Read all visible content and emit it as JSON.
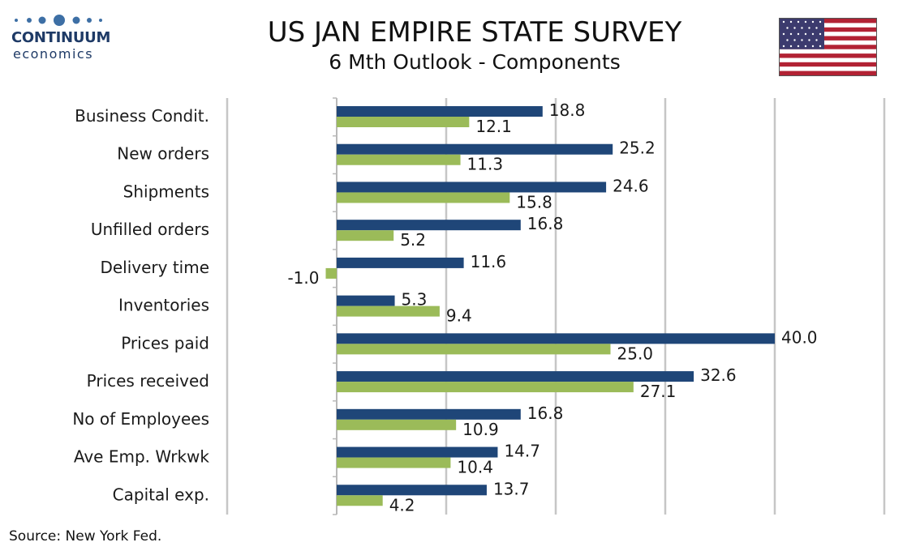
{
  "logo": {
    "name": "CONTINUUM",
    "sub": "economics"
  },
  "header": {
    "title": "US JAN EMPIRE STATE SURVEY",
    "subtitle": "6 Mth Outlook - Components"
  },
  "flag_icon": "us-flag-icon",
  "colors": {
    "series_1": "#1f4678",
    "series_2": "#9bbb59",
    "grid": "#c6c6c6",
    "logo": "#1e3a66"
  },
  "chart_data": {
    "type": "bar",
    "orientation": "horizontal",
    "categories": [
      "Business Condit.",
      "New orders ",
      "Shipments ",
      "Unfilled orders",
      "Delivery time",
      "Inventories",
      "Prices paid",
      "Prices received",
      "No of Employees",
      "Ave Emp. Wrkwk",
      "Capital exp."
    ],
    "series": [
      {
        "values": [
          18.8,
          25.2,
          24.6,
          16.8,
          11.6,
          5.3,
          40.0,
          32.6,
          16.8,
          14.7,
          13.7
        ]
      },
      {
        "values": [
          12.1,
          11.3,
          15.8,
          5.2,
          -1.0,
          9.4,
          25.0,
          27.1,
          10.9,
          10.4,
          4.2
        ]
      }
    ],
    "xlim": [
      -10,
      50
    ],
    "grid": true,
    "data_labels": true
  },
  "footer": {
    "source": "Source: New York Fed."
  }
}
